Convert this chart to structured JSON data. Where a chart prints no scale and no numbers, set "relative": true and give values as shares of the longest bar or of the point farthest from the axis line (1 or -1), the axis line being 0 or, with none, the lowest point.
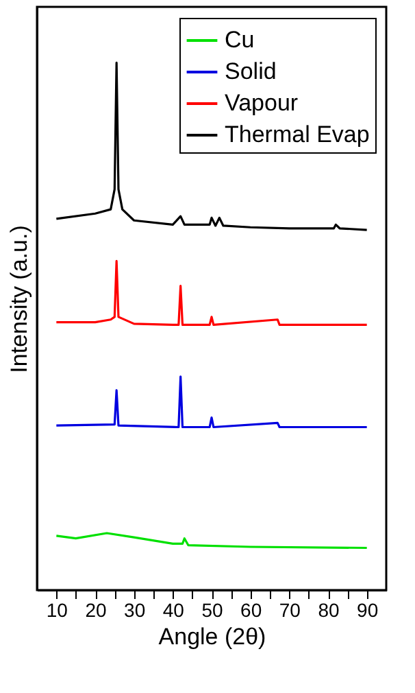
{
  "chart_data": {
    "type": "line",
    "relative": true,
    "xlabel": "Angle (2θ)",
    "ylabel": "Intensity (a.u.)",
    "xlim": [
      5,
      95
    ],
    "xticks": [
      10,
      {
        "value": 15,
        "label": null
      },
      20,
      {
        "value": 25,
        "label": null
      },
      30,
      {
        "value": 35,
        "label": null
      },
      40,
      {
        "value": 45,
        "label": null
      },
      50,
      {
        "value": 55,
        "label": null
      },
      60,
      {
        "value": 65,
        "label": null
      },
      70,
      {
        "value": 75,
        "label": null
      },
      80,
      {
        "value": 85,
        "label": null
      },
      90
    ],
    "legend": "top right",
    "grid": false,
    "marker": "none",
    "line_style": "solid",
    "series": [
      {
        "name": "Cu",
        "color": "#00e000",
        "x": [
          10,
          15,
          23,
          30,
          40,
          42.5,
          43,
          44,
          60,
          90
        ],
        "values": [
          0.103,
          0.098,
          0.108,
          0.1,
          0.088,
          0.088,
          0.098,
          0.085,
          0.082,
          0.08
        ]
      },
      {
        "name": "Solid",
        "color": "#0000e0",
        "x": [
          10,
          25,
          25.5,
          26,
          41.5,
          42,
          42.5,
          49.5,
          50,
          50.5,
          67,
          67.5,
          90
        ],
        "values": [
          0.312,
          0.314,
          0.379,
          0.312,
          0.309,
          0.405,
          0.309,
          0.309,
          0.327,
          0.309,
          0.317,
          0.309,
          0.309
        ]
      },
      {
        "name": "Vapour",
        "color": "#ff0000",
        "x": [
          10,
          20,
          24,
          25,
          25.5,
          26,
          30,
          40,
          41.5,
          42,
          42.5,
          49.5,
          50,
          50.5,
          67,
          67.5,
          90
        ],
        "values": [
          0.508,
          0.508,
          0.513,
          0.518,
          0.624,
          0.518,
          0.505,
          0.503,
          0.503,
          0.577,
          0.503,
          0.503,
          0.518,
          0.503,
          0.513,
          0.503,
          0.503
        ]
      },
      {
        "name": "Thermal Evap",
        "color": "#000000",
        "x": [
          10,
          20,
          24,
          25,
          25.5,
          26,
          27,
          30,
          40,
          42,
          43,
          49.5,
          50,
          51,
          52,
          53,
          60,
          70,
          81.5,
          82,
          83,
          90
        ],
        "values": [
          0.704,
          0.714,
          0.722,
          0.76,
          1.0,
          0.76,
          0.722,
          0.701,
          0.693,
          0.709,
          0.693,
          0.693,
          0.706,
          0.691,
          0.706,
          0.691,
          0.688,
          0.686,
          0.686,
          0.693,
          0.686,
          0.683
        ]
      }
    ]
  }
}
